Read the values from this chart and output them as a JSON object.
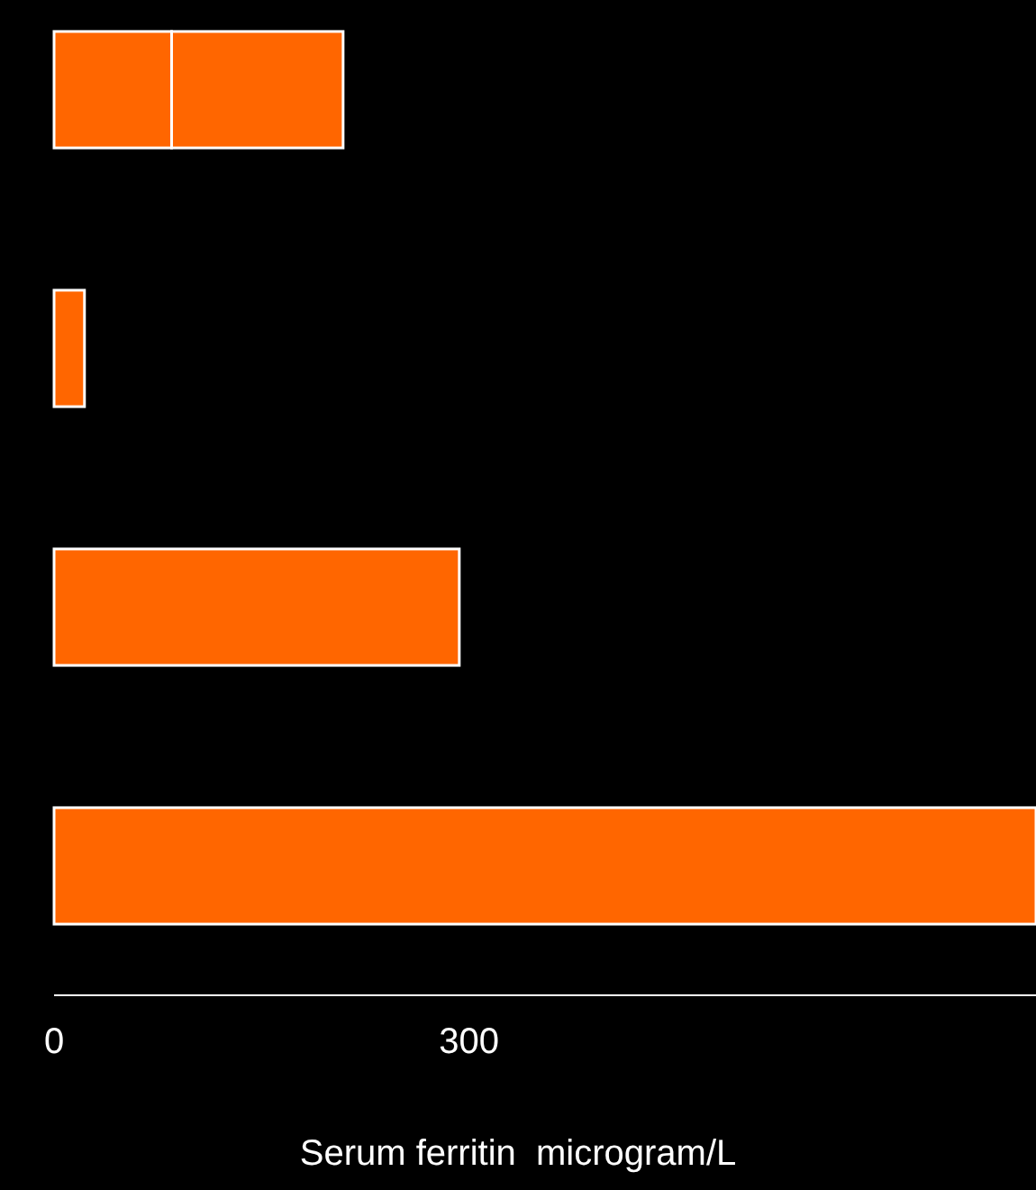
{
  "chart_data": {
    "type": "bar",
    "orientation": "horizontal",
    "stacked": true,
    "xlabel": "Serum ferritin  microgram/L",
    "categories": [
      null,
      null,
      null,
      null
    ],
    "series": [
      {
        "color": "#ff6600",
        "values": [
          85,
          22,
          293,
          710
        ]
      },
      {
        "color": "#ff6600",
        "values": [
          124,
          null,
          null,
          null
        ]
      }
    ],
    "xlim": [
      0,
      710
    ],
    "xticks": [
      0,
      300
    ],
    "grid": false
  }
}
